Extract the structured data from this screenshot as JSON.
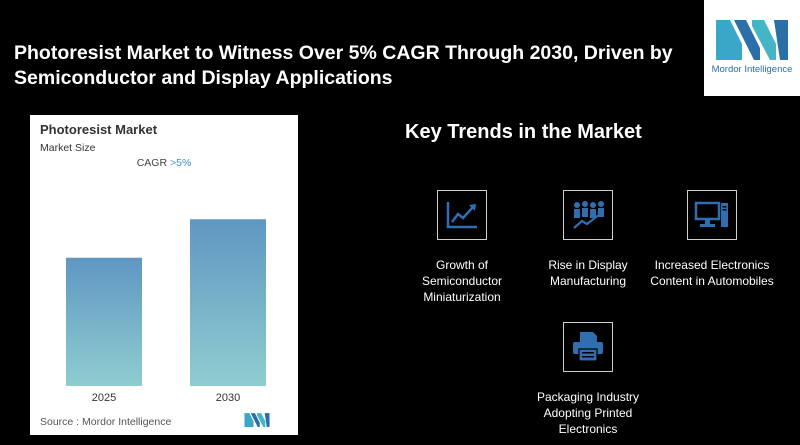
{
  "headline": "Photoresist Market to Witness Over 5% CAGR Through 2030, Driven by Semiconductor and Display Applications",
  "logo": {
    "text": "Mordor Intelligence",
    "icon": "mordor-logo"
  },
  "card": {
    "title": "Photoresist Market",
    "subtitle": "Market Size",
    "cagr_label": "CAGR",
    "cagr_value": ">5%",
    "source": "Source : Mordor Intelligence"
  },
  "chart_data": {
    "type": "bar",
    "title": "Photoresist Market",
    "subtitle": "Market Size",
    "categories": [
      "2025",
      "2030"
    ],
    "values": [
      1.0,
      1.3
    ],
    "ylim": [
      0,
      1.45
    ],
    "annotation": "CAGR >5%",
    "bar_color_top": "#5f97c2",
    "bar_color_bottom": "#8fcdd0",
    "grid": false,
    "legend": "none"
  },
  "trends": {
    "title": "Key Trends in the Market",
    "items": [
      {
        "name": "trend-semiconductor",
        "icon": "growth-chart-icon",
        "label": "Growth of Semiconductor Miniaturization"
      },
      {
        "name": "trend-display",
        "icon": "people-arrow-icon",
        "label": "Rise in Display Manufacturing"
      },
      {
        "name": "trend-electronics",
        "icon": "computer-icon",
        "label": "Increased Electronics Content in Automobiles"
      },
      {
        "name": "trend-packaging",
        "icon": "printer-icon",
        "label": "Packaging Industry Adopting Printed Electronics"
      }
    ]
  },
  "colors": {
    "accent": "#3a8fd0",
    "icon_blue": "#2f6fb0",
    "background": "#000000"
  }
}
